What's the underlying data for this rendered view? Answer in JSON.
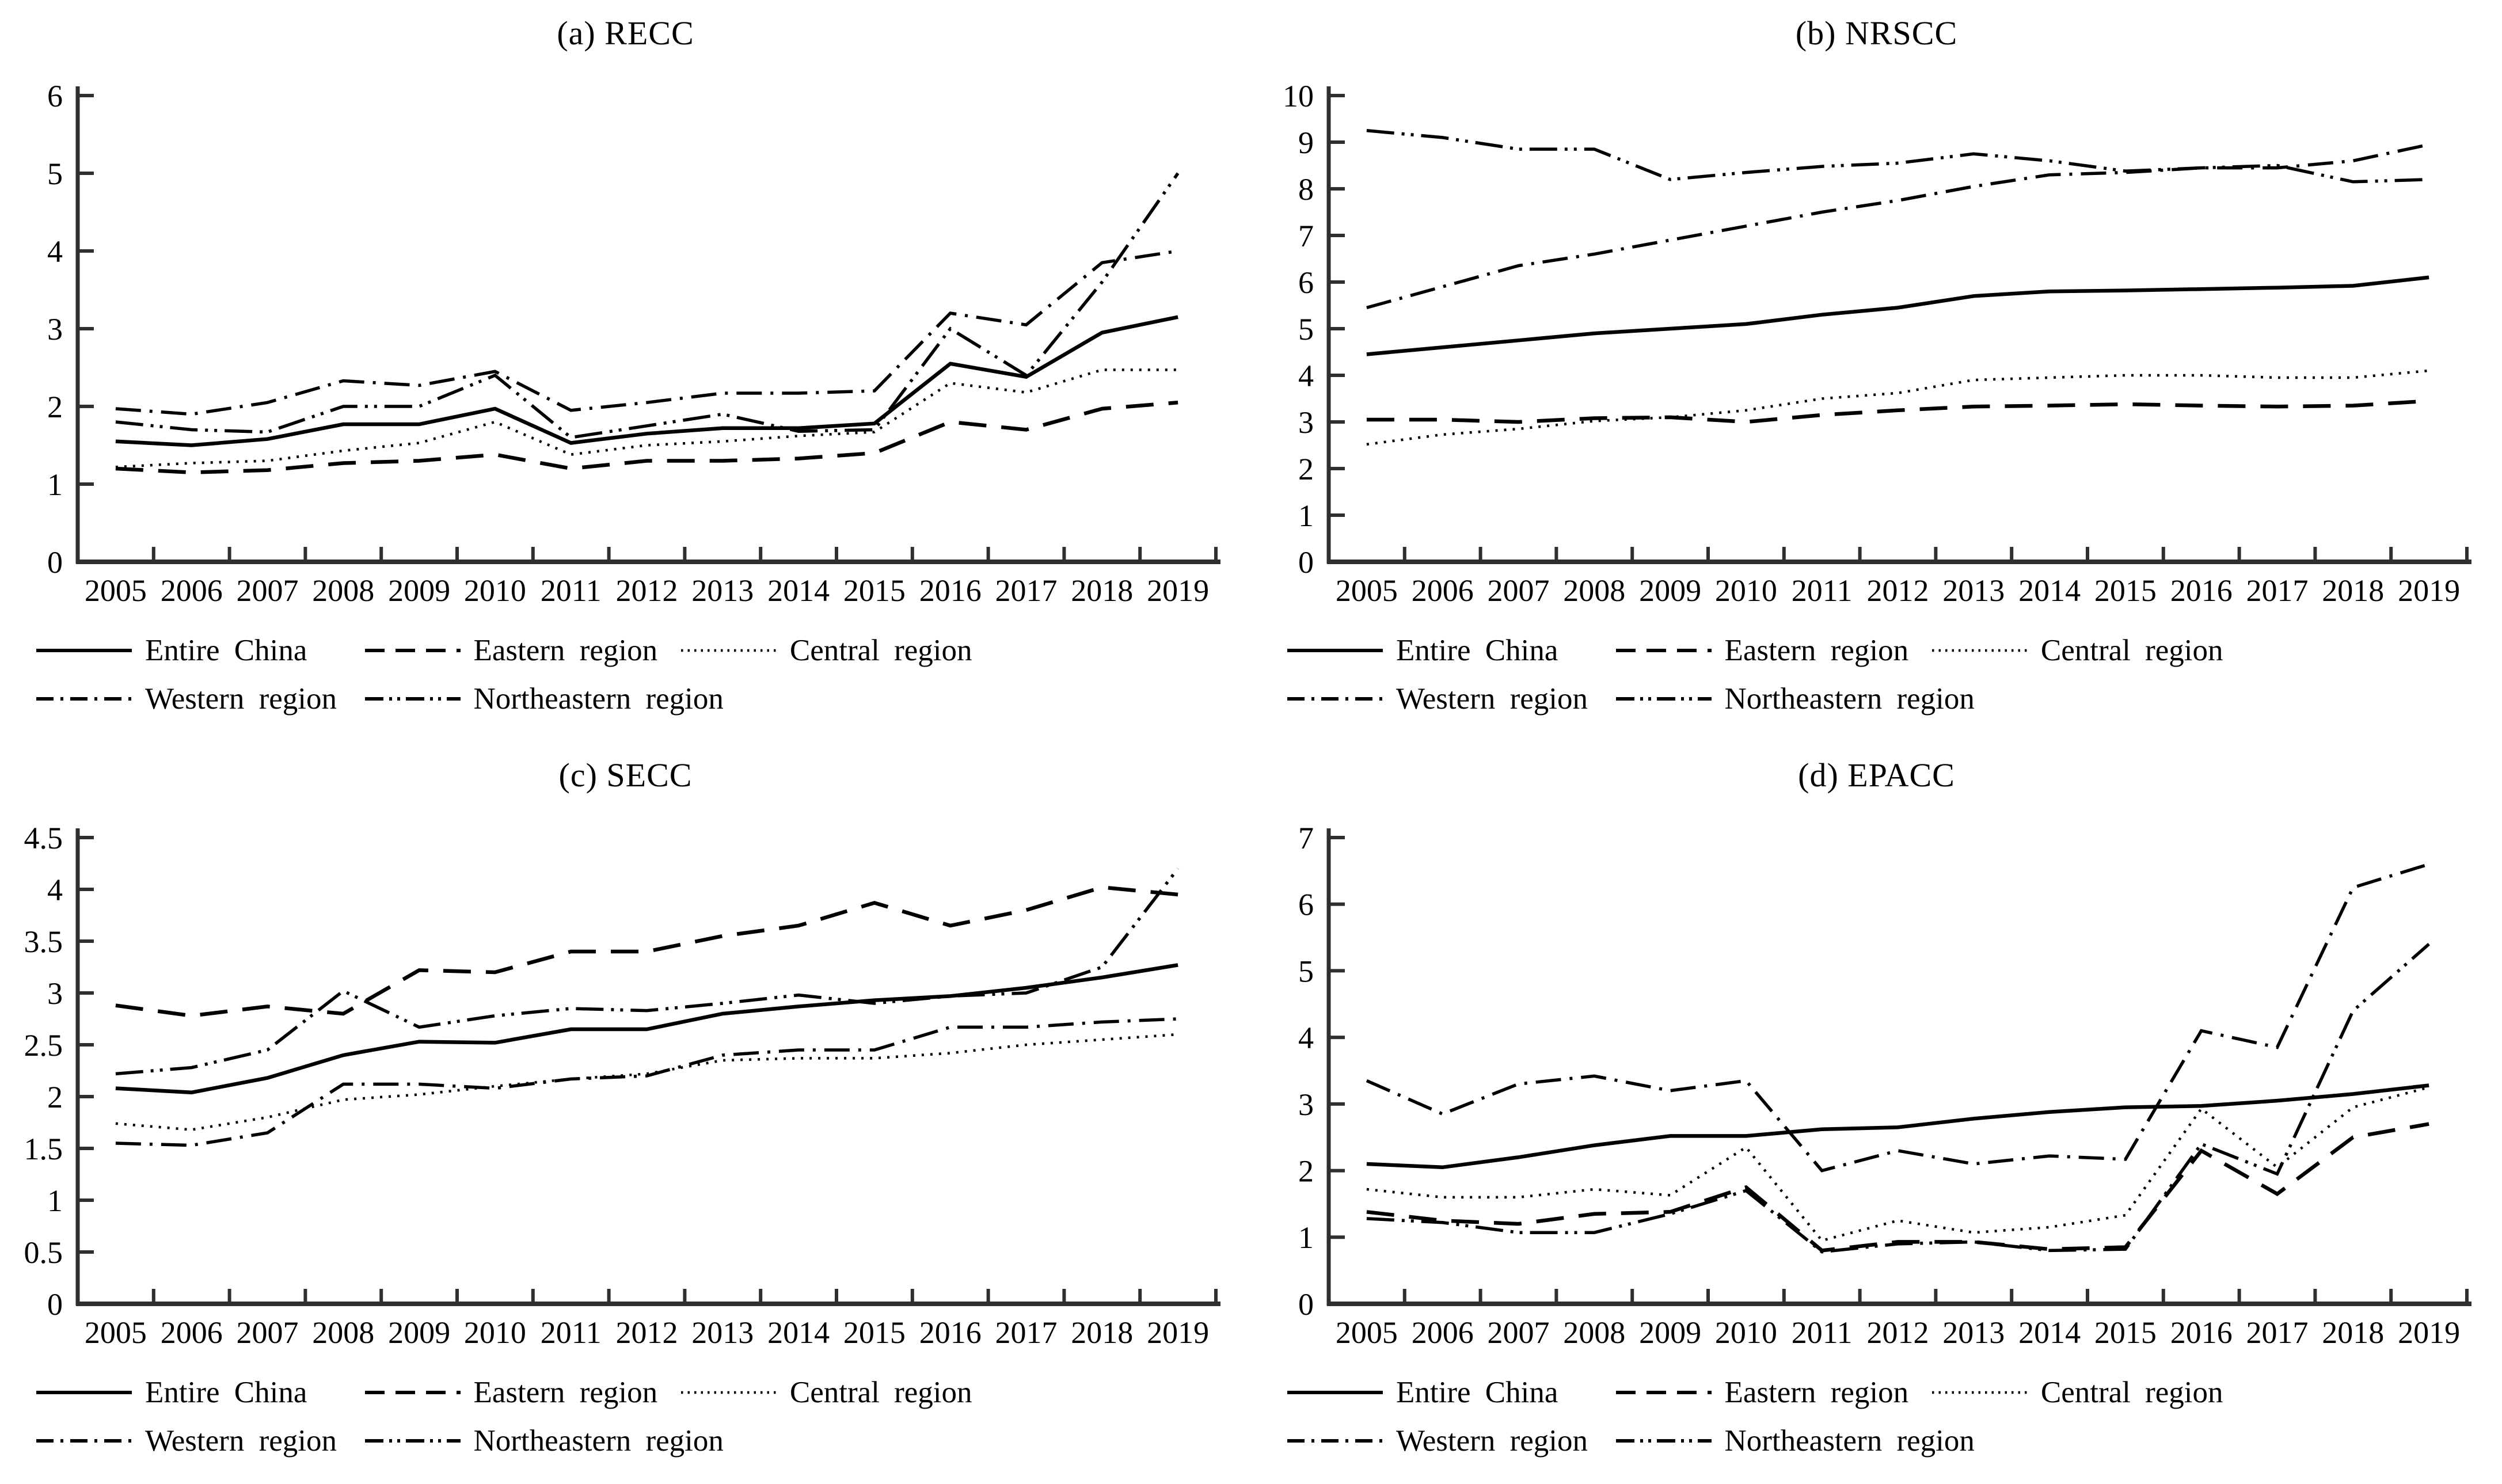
{
  "figure": {
    "background_color": "#ffffff",
    "line_color": "#000000",
    "axis_color": "#2f2f2f",
    "panel_count": 4
  },
  "chart_data": [
    {
      "type": "line",
      "title": "(a) RECC",
      "xlabel": "",
      "ylabel": "",
      "grid": false,
      "legend_position": "bottom-left",
      "categories": [
        "2005",
        "2006",
        "2007",
        "2008",
        "2009",
        "2010",
        "2011",
        "2012",
        "2013",
        "2014",
        "2015",
        "2016",
        "2017",
        "2018",
        "2019"
      ],
      "ylim": [
        0,
        6
      ],
      "yticks": [
        0,
        1,
        2,
        3,
        4,
        5,
        6
      ],
      "ytick_labels": [
        "0",
        "1",
        "2",
        "3",
        "4",
        "5",
        "6"
      ],
      "series": [
        {
          "name": "Entire China",
          "style": "solid",
          "values": [
            1.55,
            1.5,
            1.58,
            1.77,
            1.77,
            1.97,
            1.53,
            1.65,
            1.72,
            1.72,
            1.78,
            2.55,
            2.38,
            2.95,
            3.15
          ]
        },
        {
          "name": "Eastern region",
          "style": "dashed",
          "values": [
            1.2,
            1.15,
            1.18,
            1.27,
            1.3,
            1.38,
            1.2,
            1.3,
            1.3,
            1.33,
            1.4,
            1.8,
            1.7,
            1.97,
            2.05
          ]
        },
        {
          "name": "Central region",
          "style": "dotted",
          "values": [
            1.22,
            1.27,
            1.3,
            1.43,
            1.53,
            1.8,
            1.38,
            1.5,
            1.55,
            1.62,
            1.67,
            2.3,
            2.18,
            2.47,
            2.47
          ]
        },
        {
          "name": "Western region",
          "style": "dashdot",
          "values": [
            1.97,
            1.9,
            2.05,
            2.33,
            2.27,
            2.45,
            1.95,
            2.05,
            2.17,
            2.17,
            2.2,
            3.2,
            3.05,
            3.85,
            4.0
          ]
        },
        {
          "name": "Northeastern region",
          "style": "dashdotdot",
          "values": [
            1.8,
            1.7,
            1.67,
            2.0,
            2.0,
            2.4,
            1.6,
            1.75,
            1.9,
            1.68,
            1.7,
            3.0,
            2.4,
            3.6,
            5.0
          ]
        }
      ]
    },
    {
      "type": "line",
      "title": "(b) NRSCC",
      "xlabel": "",
      "ylabel": "",
      "grid": false,
      "legend_position": "bottom-left",
      "categories": [
        "2005",
        "2006",
        "2007",
        "2008",
        "2009",
        "2010",
        "2011",
        "2012",
        "2013",
        "2014",
        "2015",
        "2016",
        "2017",
        "2018",
        "2019"
      ],
      "ylim": [
        0,
        10
      ],
      "yticks": [
        0,
        1,
        2,
        3,
        4,
        5,
        6,
        7,
        8,
        9,
        10
      ],
      "ytick_labels": [
        "0",
        "1",
        "2",
        "3",
        "4",
        "5",
        "6",
        "7",
        "8",
        "9",
        "10"
      ],
      "series": [
        {
          "name": "Entire China",
          "style": "solid",
          "values": [
            4.45,
            4.6,
            4.75,
            4.9,
            5.0,
            5.1,
            5.3,
            5.45,
            5.7,
            5.8,
            5.82,
            5.85,
            5.88,
            5.92,
            6.1
          ]
        },
        {
          "name": "Eastern region",
          "style": "dashed",
          "values": [
            3.05,
            3.05,
            3.0,
            3.08,
            3.1,
            3.0,
            3.15,
            3.25,
            3.33,
            3.35,
            3.38,
            3.35,
            3.33,
            3.35,
            3.45
          ]
        },
        {
          "name": "Central region",
          "style": "dotted",
          "values": [
            2.52,
            2.73,
            2.85,
            3.02,
            3.1,
            3.25,
            3.5,
            3.62,
            3.9,
            3.95,
            4.0,
            4.0,
            3.95,
            3.95,
            4.1
          ]
        },
        {
          "name": "Western region",
          "style": "dashdot",
          "values": [
            5.45,
            5.9,
            6.35,
            6.6,
            6.9,
            7.2,
            7.5,
            7.75,
            8.05,
            8.3,
            8.35,
            8.45,
            8.45,
            8.6,
            8.95
          ]
        },
        {
          "name": "Northeastern region",
          "style": "dashdotdot",
          "values": [
            9.25,
            9.1,
            8.85,
            8.85,
            8.2,
            8.35,
            8.48,
            8.55,
            8.75,
            8.6,
            8.38,
            8.45,
            8.5,
            8.15,
            8.2
          ]
        }
      ]
    },
    {
      "type": "line",
      "title": "(c) SECC",
      "xlabel": "",
      "ylabel": "",
      "grid": false,
      "legend_position": "bottom-left",
      "categories": [
        "2005",
        "2006",
        "2007",
        "2008",
        "2009",
        "2010",
        "2011",
        "2012",
        "2013",
        "2014",
        "2015",
        "2016",
        "2017",
        "2018",
        "2019"
      ],
      "ylim": [
        0,
        4.5
      ],
      "yticks": [
        0,
        0.5,
        1,
        1.5,
        2,
        2.5,
        3,
        3.5,
        4,
        4.5
      ],
      "ytick_labels": [
        "0",
        "0.5",
        "1",
        "1.5",
        "2",
        "2.5",
        "3",
        "3.5",
        "4",
        "4.5"
      ],
      "series": [
        {
          "name": "Entire China",
          "style": "solid",
          "values": [
            2.08,
            2.04,
            2.18,
            2.4,
            2.53,
            2.52,
            2.65,
            2.65,
            2.8,
            2.87,
            2.93,
            2.97,
            3.05,
            3.15,
            3.27
          ]
        },
        {
          "name": "Eastern region",
          "style": "dashed",
          "values": [
            2.88,
            2.78,
            2.87,
            2.8,
            3.22,
            3.2,
            3.4,
            3.4,
            3.55,
            3.65,
            3.87,
            3.65,
            3.8,
            4.02,
            3.95
          ]
        },
        {
          "name": "Central region",
          "style": "dotted",
          "values": [
            1.74,
            1.68,
            1.8,
            1.97,
            2.02,
            2.1,
            2.17,
            2.22,
            2.35,
            2.37,
            2.37,
            2.42,
            2.5,
            2.55,
            2.6
          ]
        },
        {
          "name": "Western region",
          "style": "dashdot",
          "values": [
            1.55,
            1.53,
            1.65,
            2.12,
            2.12,
            2.08,
            2.17,
            2.2,
            2.4,
            2.45,
            2.45,
            2.67,
            2.67,
            2.72,
            2.75
          ]
        },
        {
          "name": "Northeastern region",
          "style": "dashdotdot",
          "values": [
            2.22,
            2.28,
            2.45,
            3.02,
            2.67,
            2.78,
            2.85,
            2.83,
            2.9,
            2.98,
            2.9,
            2.97,
            3.0,
            3.25,
            4.2
          ]
        }
      ]
    },
    {
      "type": "line",
      "title": "(d) EPACC",
      "xlabel": "",
      "ylabel": "",
      "grid": false,
      "legend_position": "bottom-left",
      "categories": [
        "2005",
        "2006",
        "2007",
        "2008",
        "2009",
        "2010",
        "2011",
        "2012",
        "2013",
        "2014",
        "2015",
        "2016",
        "2017",
        "2018",
        "2019"
      ],
      "ylim": [
        0,
        7
      ],
      "yticks": [
        0,
        1,
        2,
        3,
        4,
        5,
        6,
        7
      ],
      "ytick_labels": [
        "0",
        "1",
        "2",
        "3",
        "4",
        "5",
        "6",
        "7"
      ],
      "series": [
        {
          "name": "Entire China",
          "style": "solid",
          "values": [
            2.1,
            2.05,
            2.2,
            2.38,
            2.52,
            2.52,
            2.62,
            2.65,
            2.78,
            2.88,
            2.95,
            2.97,
            3.05,
            3.15,
            3.28
          ]
        },
        {
          "name": "Eastern region",
          "style": "dashed",
          "values": [
            1.38,
            1.25,
            1.2,
            1.35,
            1.38,
            1.75,
            0.8,
            0.93,
            0.93,
            0.82,
            0.85,
            2.3,
            1.65,
            2.5,
            2.7
          ]
        },
        {
          "name": "Central region",
          "style": "dotted",
          "values": [
            1.72,
            1.6,
            1.6,
            1.72,
            1.63,
            2.35,
            0.95,
            1.25,
            1.07,
            1.15,
            1.33,
            2.93,
            2.05,
            2.95,
            3.25
          ]
        },
        {
          "name": "Western region",
          "style": "dashdot",
          "values": [
            3.35,
            2.85,
            3.3,
            3.42,
            3.2,
            3.35,
            2.0,
            2.3,
            2.1,
            2.22,
            2.17,
            4.1,
            3.85,
            6.25,
            6.6
          ]
        },
        {
          "name": "Northeastern region",
          "style": "dashdotdot",
          "values": [
            1.28,
            1.22,
            1.07,
            1.07,
            1.35,
            1.7,
            0.78,
            0.9,
            0.93,
            0.8,
            0.82,
            2.4,
            1.95,
            4.4,
            5.4
          ]
        }
      ]
    }
  ]
}
